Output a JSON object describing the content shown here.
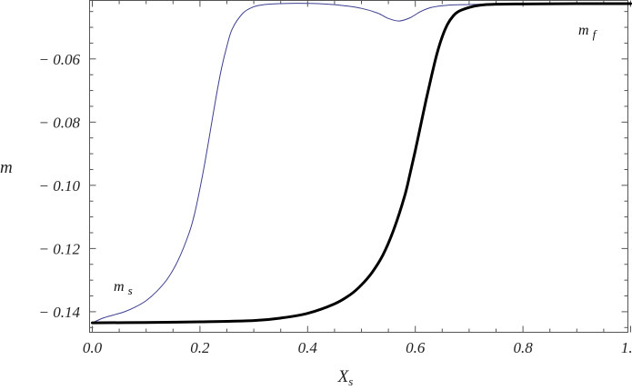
{
  "chart_data": {
    "type": "line",
    "title": "",
    "xlabel": "X",
    "xlabel_sub": "s",
    "ylabel": "m",
    "xlim": [
      0.0,
      1.0
    ],
    "ylim": [
      -0.1465,
      -0.0415
    ],
    "x_ticks": [
      0.0,
      0.2,
      0.4,
      0.6,
      0.8,
      1.0
    ],
    "x_tick_labels": [
      "0.0",
      "0.2",
      "0.4",
      "0.6",
      "0.8",
      "1.0"
    ],
    "y_ticks": [
      -0.14,
      -0.12,
      -0.1,
      -0.08,
      -0.06
    ],
    "y_tick_labels": [
      "− 0.14",
      "− 0.12",
      "− 0.10",
      "− 0.08",
      "− 0.06"
    ],
    "grid": false,
    "series": [
      {
        "name": "m s",
        "label_main": "m",
        "label_sub": "s",
        "color": "#3b3f8f",
        "x": [
          0.0,
          0.02,
          0.04,
          0.06,
          0.08,
          0.1,
          0.12,
          0.14,
          0.16,
          0.18,
          0.19,
          0.2,
          0.21,
          0.22,
          0.23,
          0.24,
          0.25,
          0.26,
          0.28,
          0.3,
          0.32,
          0.35,
          0.38,
          0.42,
          0.46,
          0.5,
          0.53,
          0.55,
          0.57,
          0.59,
          0.61,
          0.63,
          0.66,
          0.7,
          0.75,
          0.8,
          0.9,
          1.0
        ],
        "y": [
          -0.1435,
          -0.142,
          -0.141,
          -0.14,
          -0.1385,
          -0.1365,
          -0.1335,
          -0.1295,
          -0.1235,
          -0.115,
          -0.109,
          -0.101,
          -0.092,
          -0.082,
          -0.072,
          -0.063,
          -0.056,
          -0.0505,
          -0.0455,
          -0.0435,
          -0.0428,
          -0.0425,
          -0.0424,
          -0.0425,
          -0.043,
          -0.044,
          -0.0455,
          -0.0472,
          -0.048,
          -0.047,
          -0.045,
          -0.0437,
          -0.043,
          -0.0428,
          -0.0426,
          -0.0425,
          -0.0425,
          -0.0425
        ]
      },
      {
        "name": "m f",
        "label_main": "m",
        "label_sub": "f",
        "color": "#000000",
        "x": [
          0.0,
          0.1,
          0.2,
          0.3,
          0.35,
          0.4,
          0.45,
          0.48,
          0.5,
          0.52,
          0.54,
          0.56,
          0.58,
          0.59,
          0.6,
          0.61,
          0.62,
          0.63,
          0.64,
          0.65,
          0.66,
          0.67,
          0.68,
          0.7,
          0.72,
          0.75,
          0.8,
          0.9,
          1.0
        ],
        "y": [
          -0.1435,
          -0.1434,
          -0.1432,
          -0.1428,
          -0.142,
          -0.1405,
          -0.1375,
          -0.1345,
          -0.1315,
          -0.1275,
          -0.122,
          -0.114,
          -0.1035,
          -0.0965,
          -0.089,
          -0.081,
          -0.073,
          -0.0655,
          -0.0585,
          -0.053,
          -0.049,
          -0.0465,
          -0.045,
          -0.0437,
          -0.043,
          -0.0427,
          -0.0426,
          -0.0425,
          -0.0425
        ]
      }
    ]
  }
}
